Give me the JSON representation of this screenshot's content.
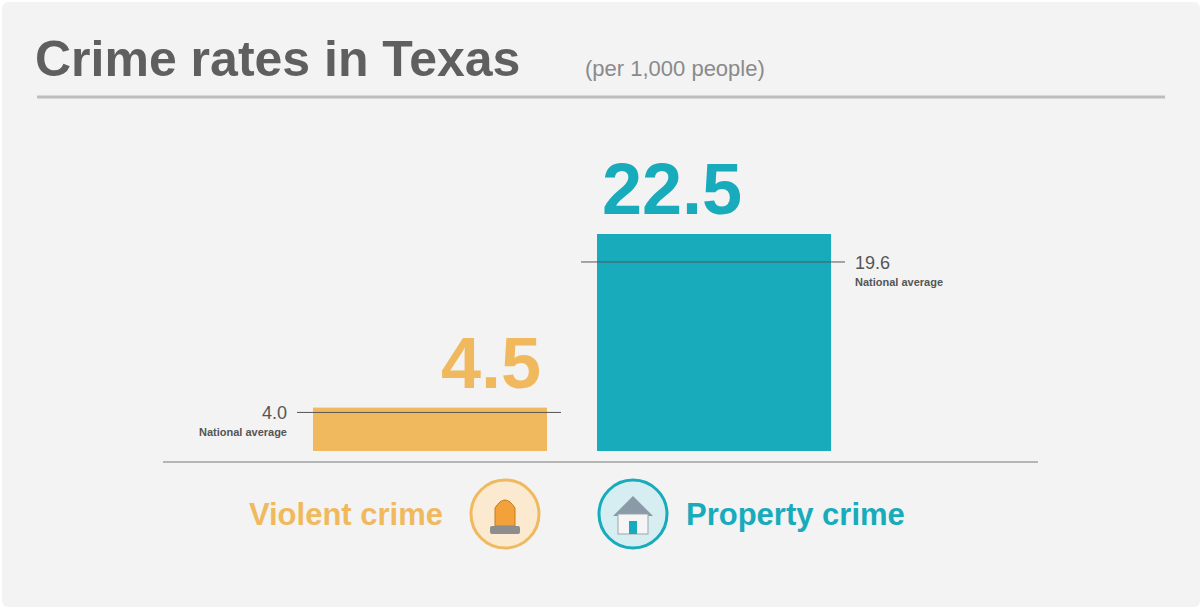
{
  "chart_data": {
    "type": "bar",
    "title": "Crime rates in Texas",
    "subtitle": "(per 1,000 people)",
    "categories": [
      "Violent crime",
      "Property crime"
    ],
    "values": [
      4.5,
      22.5
    ],
    "colors": [
      "#f0b95e",
      "#17abbb"
    ],
    "ylim": [
      0,
      22.5
    ],
    "tick_labels": false,
    "data_labels": true,
    "national_average": {
      "label": "National average",
      "values": [
        4.0,
        19.6
      ],
      "value_labels": [
        "4.0",
        "19.6"
      ]
    }
  }
}
